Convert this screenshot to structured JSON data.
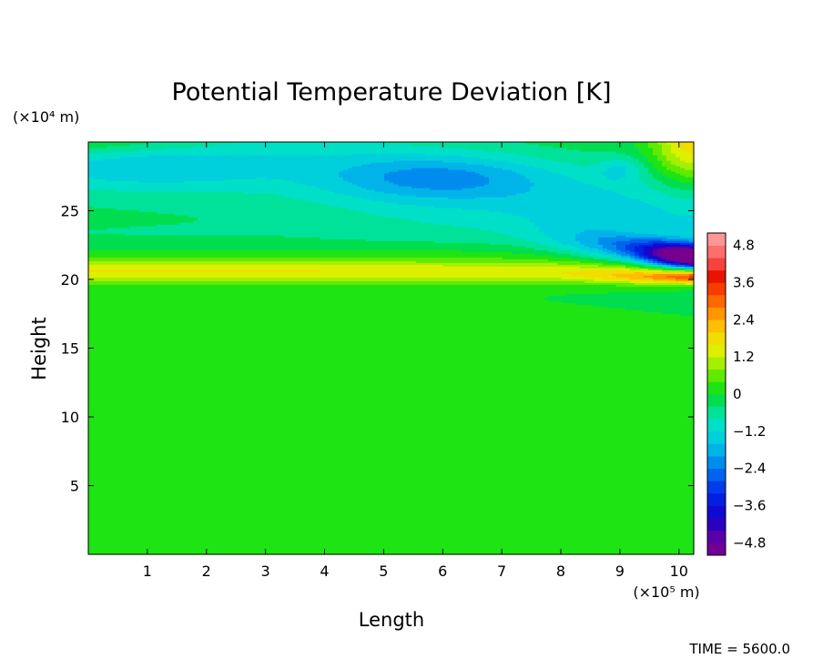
{
  "chart_data": {
    "type": "heatmap",
    "title": "Potential Temperature Deviation [K]",
    "xlabel": "Length",
    "ylabel": "Height",
    "x_scale_label": "(×10⁵ m)",
    "y_scale_label": "(×10⁴ m)",
    "xlim": [
      0,
      10.25
    ],
    "ylim": [
      0,
      30
    ],
    "x_ticks": [
      1,
      2,
      3,
      4,
      5,
      6,
      7,
      8,
      9,
      10
    ],
    "y_ticks": [
      5,
      10,
      15,
      20,
      25
    ],
    "colorbar": {
      "min": -5.2,
      "max": 5.2,
      "step": 0.4,
      "tick_values": [
        -4.8,
        -3.6,
        -2.4,
        -1.2,
        0,
        1.2,
        2.4,
        3.6,
        4.8
      ],
      "tick_labels": [
        "−4.8",
        "−3.6",
        "−2.4",
        "−1.2",
        "0",
        "1.2",
        "2.4",
        "3.6",
        "4.8"
      ]
    },
    "features": [
      {
        "name": "warm layer",
        "value": 1.6,
        "x_range": [
          0,
          10.25
        ],
        "y": 20.6
      },
      {
        "name": "cold anomaly core",
        "value": -5.2,
        "x": 10.1,
        "y": 21.7
      },
      {
        "name": "warm anomaly core",
        "value": 3.8,
        "x": 9.5,
        "y": 20.2
      },
      {
        "name": "upper cool region",
        "value": -2.3,
        "x": 6.0,
        "y": 27.5
      },
      {
        "name": "upper cool blob",
        "value": -1.8,
        "x": 9.0,
        "y": 28.0
      }
    ],
    "grid": false,
    "legend": "colorbar-right"
  },
  "footer": {
    "time_label": "TIME = 5600.0"
  }
}
